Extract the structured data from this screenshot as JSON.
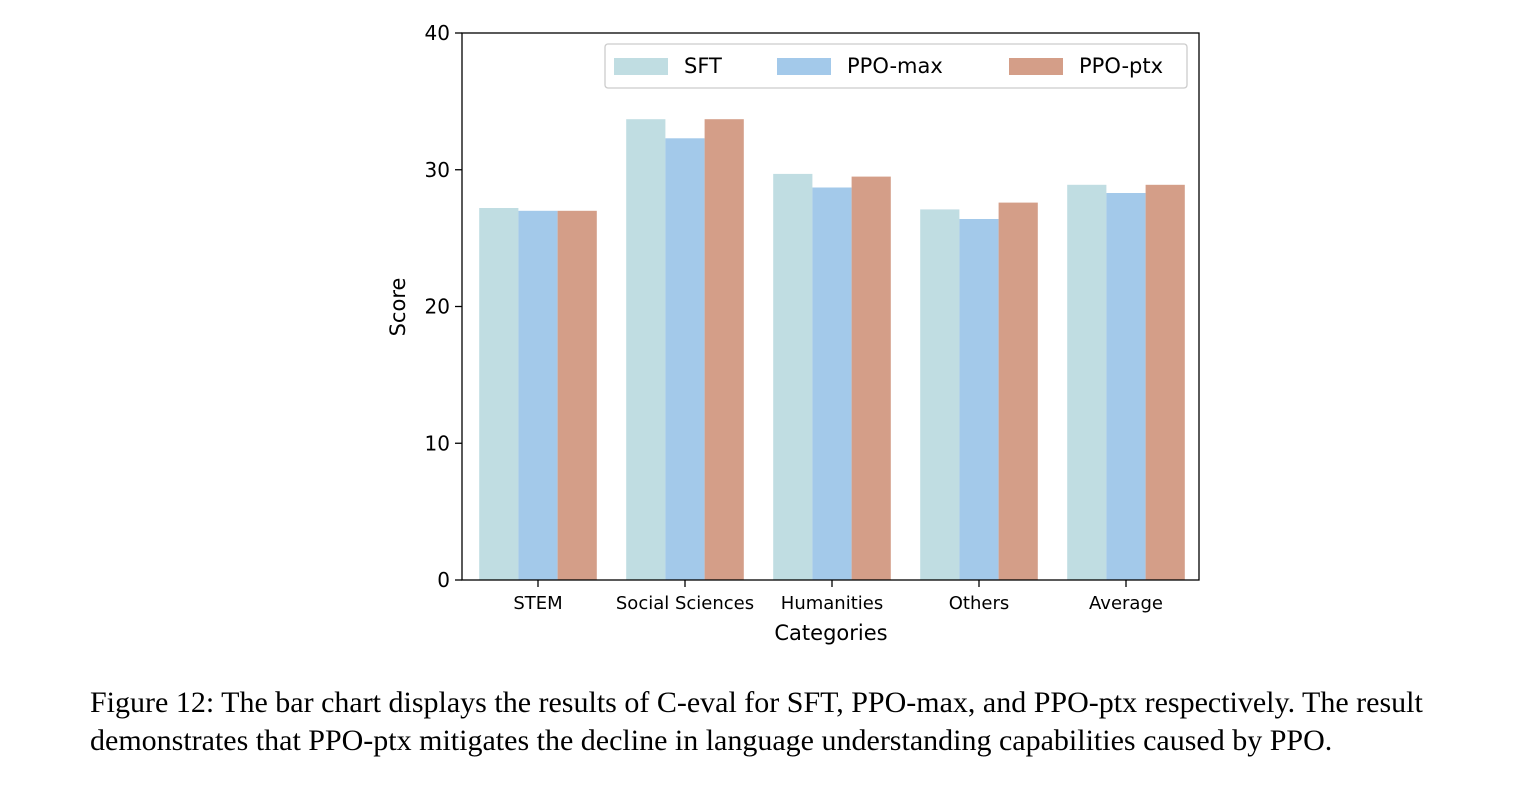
{
  "chart_data": {
    "type": "bar",
    "xlabel": "Categories",
    "ylabel": "Score",
    "ylim": [
      0,
      40
    ],
    "yticks": [
      0,
      10,
      20,
      30,
      40
    ],
    "grid": false,
    "legend_position": "top-right",
    "categories": [
      "STEM",
      "Social Sciences",
      "Humanities",
      "Others",
      "Average"
    ],
    "series": [
      {
        "name": "SFT",
        "color": "#c0dde2",
        "values": [
          27.2,
          33.7,
          29.7,
          27.1,
          28.9
        ]
      },
      {
        "name": "PPO-max",
        "color": "#a3c9ea",
        "values": [
          27.0,
          32.3,
          28.7,
          26.4,
          28.3
        ]
      },
      {
        "name": "PPO-ptx",
        "color": "#d49e88",
        "values": [
          27.0,
          33.7,
          29.5,
          27.6,
          28.9
        ]
      }
    ]
  },
  "caption": "Figure 12: The bar chart displays the results of C-eval for SFT, PPO-max, and PPO-ptx respectively. The result demonstrates that PPO-ptx mitigates the decline in language understanding capabilities caused by PPO."
}
